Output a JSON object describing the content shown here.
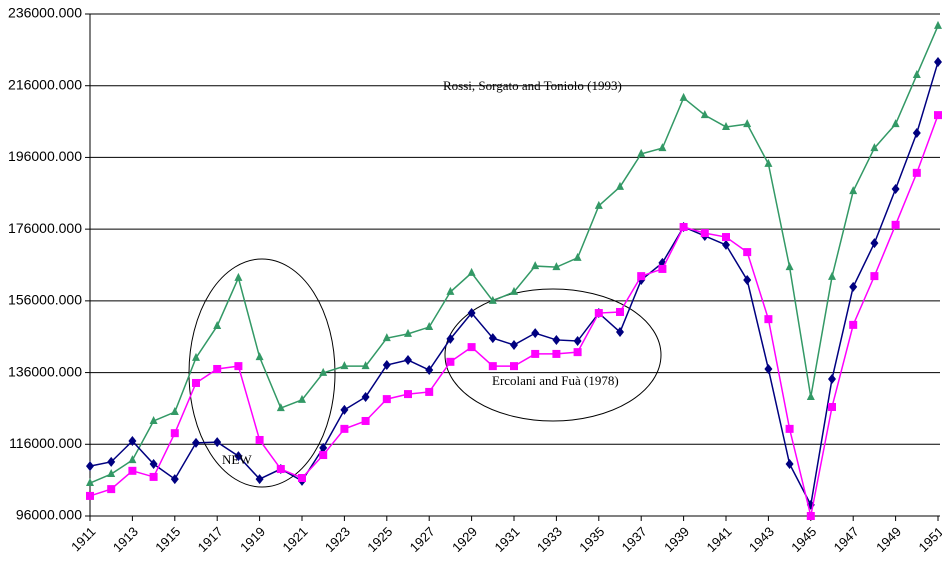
{
  "chart_data": {
    "type": "line",
    "annotations": [
      "Rossi, Sorgato and Toniolo (1993)",
      "Ercolani and Fuà (1978)",
      "NEW"
    ],
    "x": [
      1911,
      1912,
      1913,
      1914,
      1915,
      1916,
      1917,
      1918,
      1919,
      1920,
      1921,
      1922,
      1923,
      1924,
      1925,
      1926,
      1927,
      1928,
      1929,
      1930,
      1931,
      1932,
      1933,
      1934,
      1935,
      1936,
      1937,
      1938,
      1939,
      1940,
      1941,
      1942,
      1943,
      1944,
      1945,
      1946,
      1947,
      1948,
      1949,
      1950,
      1951
    ],
    "xlim": [
      1911,
      1951
    ],
    "xticks": [
      1911,
      1913,
      1915,
      1917,
      1919,
      1921,
      1923,
      1925,
      1927,
      1929,
      1931,
      1933,
      1935,
      1937,
      1939,
      1941,
      1943,
      1945,
      1947,
      1949,
      1951
    ],
    "ylim": [
      96000,
      236000
    ],
    "yticks": [
      {
        "value": 96000,
        "label": "96000.000"
      },
      {
        "value": 116000,
        "label": "116000.000"
      },
      {
        "value": 136000,
        "label": "136000.000"
      },
      {
        "value": 156000,
        "label": "156000.000"
      },
      {
        "value": 176000,
        "label": "176000.000"
      },
      {
        "value": 196000,
        "label": "196000.000"
      },
      {
        "value": 216000,
        "label": "216000.000"
      },
      {
        "value": 236000,
        "label": "236000.000"
      }
    ],
    "grid": true,
    "series": [
      {
        "color": "#339966",
        "marker": "triangle",
        "values": [
          105200,
          107700,
          111600,
          122500,
          125000,
          140100,
          149000,
          162400,
          140300,
          126100,
          128400,
          135900,
          137800,
          137800,
          145600,
          146800,
          148700,
          158500,
          163800,
          156000,
          158500,
          165700,
          165400,
          168000,
          182500,
          187800,
          197000,
          198600,
          212600,
          207800,
          204500,
          205300,
          194200,
          165400,
          129200,
          162700,
          186600,
          198600,
          205300,
          219000,
          232700
        ]
      },
      {
        "color": "#000080",
        "marker": "diamond",
        "values": [
          109900,
          111100,
          116900,
          110500,
          106300,
          116400,
          116600,
          112700,
          106300,
          109100,
          105800,
          115000,
          125600,
          129200,
          138100,
          139500,
          136700,
          145400,
          152600,
          145600,
          143700,
          147000,
          145100,
          144800,
          152600,
          147300,
          161800,
          166600,
          176600,
          174100,
          171600,
          161800,
          137000,
          110500,
          99100,
          134200,
          159900,
          172100,
          187200,
          202800,
          222600
        ]
      },
      {
        "color": "#ff00ff",
        "marker": "square",
        "values": [
          101600,
          103500,
          108600,
          106900,
          119100,
          133100,
          137000,
          137800,
          117200,
          109100,
          106600,
          113000,
          120300,
          122500,
          128600,
          130000,
          130600,
          139000,
          143100,
          137800,
          137800,
          141200,
          141200,
          141700,
          152600,
          152900,
          162900,
          164900,
          176600,
          174900,
          173800,
          169600,
          150900,
          120300,
          96000,
          126400,
          149300,
          162900,
          177200,
          191700,
          207800
        ]
      }
    ]
  }
}
